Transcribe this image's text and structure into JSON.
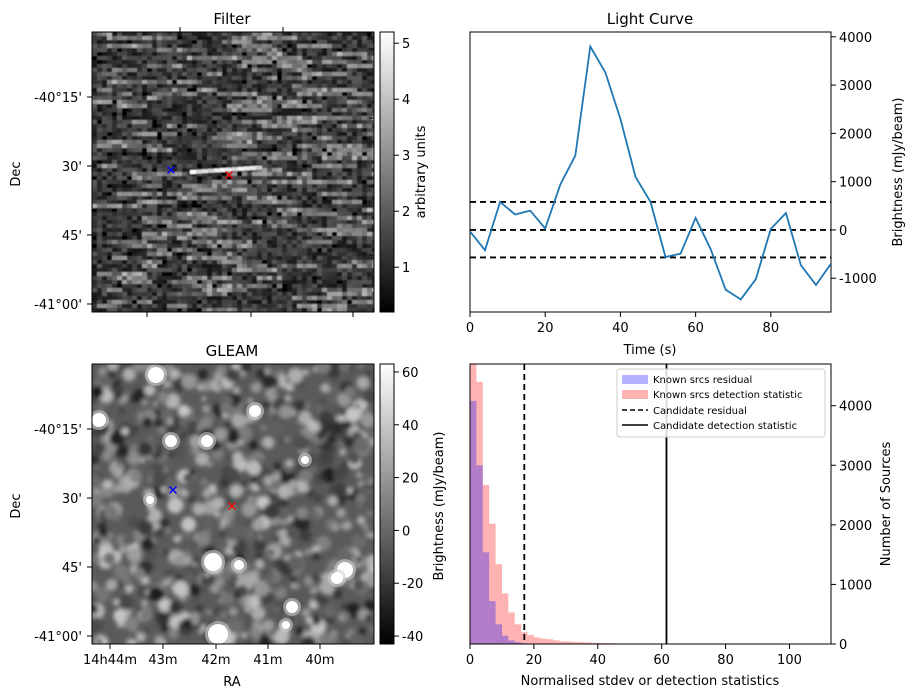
{
  "chart_data": [
    {
      "type": "image",
      "title": "Filter",
      "xlabel": "",
      "ylabel": "Dec",
      "ytick_labels": [
        "-40°15'",
        "30'",
        "45'",
        "-41°00'"
      ],
      "colorbar": {
        "label": "arbitrary units",
        "ticks": [
          1,
          2,
          3,
          4,
          5
        ],
        "range": [
          0.2,
          5.2
        ],
        "cmap": "gray"
      },
      "markers": [
        {
          "name": "blue-cross",
          "color": "#0000ff",
          "symbol": "x"
        },
        {
          "name": "red-cross",
          "color": "#ff0000",
          "symbol": "x"
        }
      ]
    },
    {
      "type": "line",
      "title": "Light Curve",
      "xlabel": "Time (s)",
      "ylabel": "Brightness (mJy/beam)",
      "xlim": [
        0,
        96
      ],
      "ylim": [
        -1700,
        4100
      ],
      "xticks": [
        0,
        20,
        40,
        60,
        80
      ],
      "yticks": [
        -1000,
        0,
        1000,
        2000,
        3000,
        4000
      ],
      "series": [
        {
          "name": "light-curve",
          "color": "#1f77b4",
          "x": [
            0,
            4,
            8,
            12,
            16,
            20,
            24,
            28,
            32,
            36,
            40,
            44,
            48,
            52,
            56,
            60,
            64,
            68,
            72,
            76,
            80,
            84,
            88,
            92,
            96
          ],
          "y": [
            -30,
            -420,
            580,
            320,
            400,
            30,
            940,
            1540,
            3800,
            3260,
            2300,
            1100,
            580,
            -560,
            -490,
            250,
            -400,
            -1240,
            -1440,
            -1020,
            20,
            350,
            -730,
            -1140,
            -700
          ]
        }
      ],
      "hlines": [
        {
          "name": "upper-threshold",
          "y": 580,
          "style": "dashed",
          "color": "#000000"
        },
        {
          "name": "zero-line",
          "y": 0,
          "style": "dashed",
          "color": "#000000"
        },
        {
          "name": "lower-threshold",
          "y": -570,
          "style": "dashed",
          "color": "#000000"
        }
      ]
    },
    {
      "type": "image",
      "title": "GLEAM",
      "xlabel": "RA",
      "ylabel": "Dec",
      "xtick_labels": [
        "14h44m",
        "43m",
        "42m",
        "41m",
        "40m"
      ],
      "ytick_labels": [
        "-40°15'",
        "30'",
        "45'",
        "-41°00'"
      ],
      "colorbar": {
        "label": "Brightness (mJy/beam)",
        "ticks": [
          -40,
          -20,
          0,
          20,
          40,
          60
        ],
        "range": [
          -43,
          63
        ],
        "cmap": "gray"
      },
      "markers": [
        {
          "name": "blue-cross",
          "color": "#0000ff",
          "symbol": "x"
        },
        {
          "name": "red-cross",
          "color": "#ff0000",
          "symbol": "x"
        }
      ]
    },
    {
      "type": "histogram",
      "title": "",
      "xlabel": "Normalised stdev or detection statistics",
      "ylabel": "Number of Sources",
      "xlim": [
        0,
        113
      ],
      "ylim": [
        0,
        4700
      ],
      "xticks": [
        0,
        20,
        40,
        60,
        80,
        100
      ],
      "yticks": [
        0,
        1000,
        2000,
        3000,
        4000
      ],
      "bin_width": 2,
      "series": [
        {
          "name": "Known srcs residual",
          "color": "#0000ff",
          "alpha": 0.3,
          "bin_starts": [
            0,
            2,
            4,
            6,
            8,
            10,
            12,
            14,
            16,
            18,
            20
          ],
          "counts": [
            4080,
            3000,
            1540,
            720,
            330,
            140,
            60,
            30,
            15,
            8,
            4
          ]
        },
        {
          "name": "Known srcs detection statistic",
          "color": "#ff0000",
          "alpha": 0.3,
          "bin_starts": [
            0,
            2,
            4,
            6,
            8,
            10,
            12,
            14,
            16,
            18,
            20,
            22,
            24,
            26,
            28,
            30,
            32,
            34,
            36,
            38,
            40,
            42,
            44,
            46,
            48,
            50,
            52,
            54,
            56,
            58,
            60,
            70,
            80,
            106
          ],
          "counts": [
            4700,
            4400,
            2670,
            2020,
            1340,
            850,
            530,
            330,
            200,
            150,
            110,
            90,
            80,
            60,
            45,
            40,
            35,
            30,
            25,
            20,
            18,
            15,
            12,
            10,
            8,
            6,
            5,
            4,
            3,
            3,
            2,
            10,
            10,
            5
          ]
        }
      ],
      "vlines": [
        {
          "name": "Candidate residual",
          "x": 17,
          "style": "dashed",
          "color": "#000000"
        },
        {
          "name": "Candidate detection statistic",
          "x": 61.5,
          "style": "solid",
          "color": "#000000"
        }
      ],
      "legend": {
        "placement": "top-right",
        "entries": [
          "Known srcs residual",
          "Known srcs detection statistic",
          "Candidate residual",
          "Candidate detection statistic"
        ]
      }
    }
  ]
}
